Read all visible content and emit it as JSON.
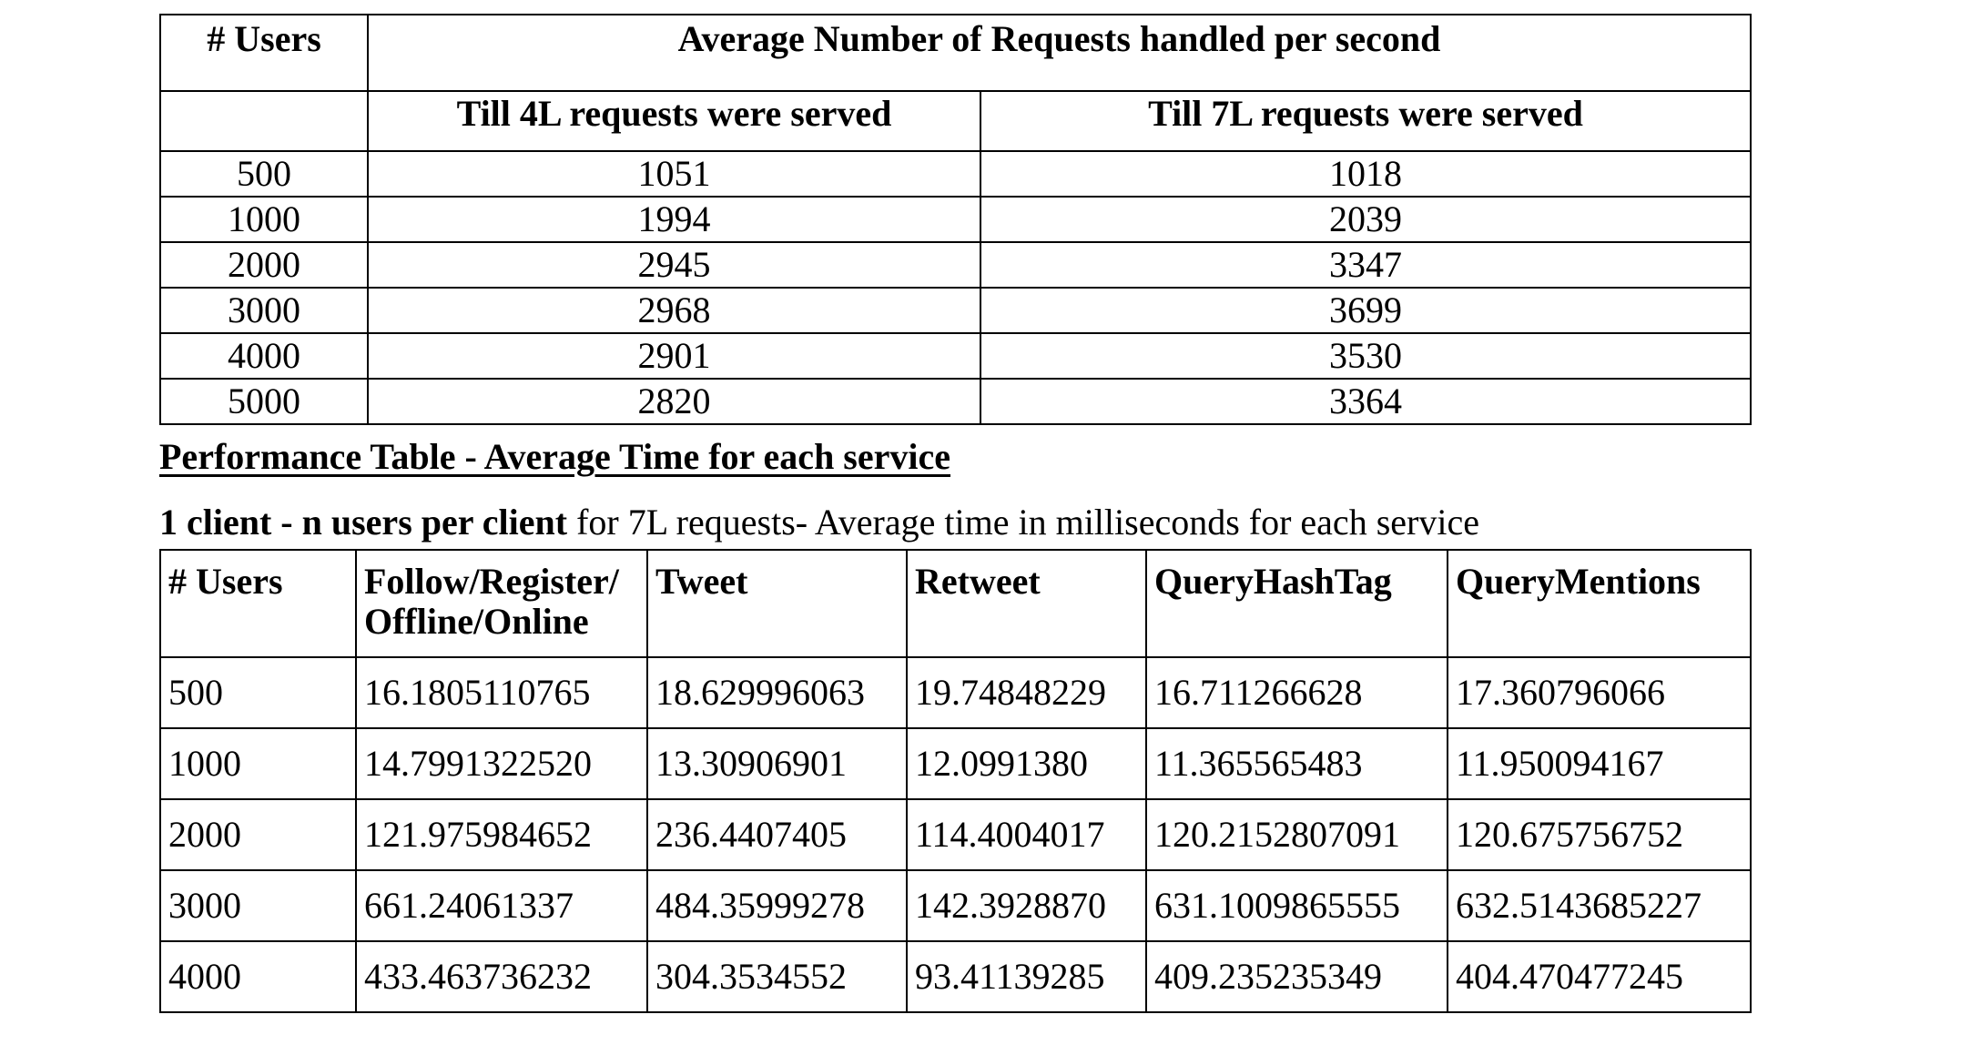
{
  "throughput_table": {
    "users_header": "# Users",
    "main_header": "Average Number of Requests handled per second",
    "sub_headers": [
      "Till 4L requests were served",
      "Till 7L requests were served"
    ],
    "rows": [
      {
        "users": "500",
        "till_4l": "1051",
        "till_7l": "1018"
      },
      {
        "users": "1000",
        "till_4l": "1994",
        "till_7l": "2039"
      },
      {
        "users": "2000",
        "till_4l": "2945",
        "till_7l": "3347"
      },
      {
        "users": "3000",
        "till_4l": "2968",
        "till_7l": "3699"
      },
      {
        "users": "4000",
        "till_4l": "2901",
        "till_7l": "3530"
      },
      {
        "users": "5000",
        "till_4l": "2820",
        "till_7l": "3364"
      }
    ]
  },
  "performance_section": {
    "title": "Performance Table - Average Time for each service",
    "subtitle_bold": "1 client - n users per client",
    "subtitle_rest": " for 7L requests- Average time in milliseconds for each service"
  },
  "service_table": {
    "headers": {
      "users": "# Users",
      "follow_line1": "Follow/Register/",
      "follow_line2": "Offline/Online",
      "tweet": "Tweet",
      "retweet": "Retweet",
      "query_hashtag": "QueryHashTag",
      "query_mentions": "QueryMentions"
    },
    "rows": [
      {
        "users": "500",
        "follow": "16.1805110765",
        "tweet": "18.629996063",
        "retweet": "19.74848229",
        "query_hashtag": "16.711266628",
        "query_mentions": "17.360796066"
      },
      {
        "users": "1000",
        "follow": "14.7991322520",
        "tweet": "13.30906901",
        "retweet": "12.0991380",
        "query_hashtag": "11.365565483",
        "query_mentions": "11.950094167"
      },
      {
        "users": "2000",
        "follow": "121.975984652",
        "tweet": "236.4407405",
        "retweet": "114.4004017",
        "query_hashtag": "120.2152807091",
        "query_mentions": "120.675756752"
      },
      {
        "users": "3000",
        "follow": "661.24061337",
        "tweet": "484.35999278",
        "retweet": "142.3928870",
        "query_hashtag": "631.1009865555",
        "query_mentions": "632.5143685227"
      },
      {
        "users": "4000",
        "follow": "433.463736232",
        "tweet": "304.3534552",
        "retweet": "93.41139285",
        "query_hashtag": "409.235235349",
        "query_mentions": " 404.470477245"
      }
    ]
  }
}
